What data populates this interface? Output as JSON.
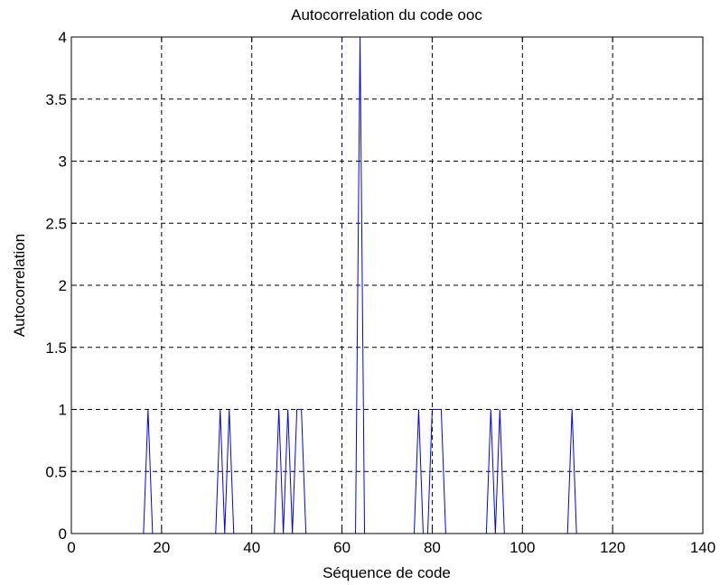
{
  "chart_data": {
    "type": "line",
    "title": "Autocorrelation du code ooc",
    "xlabel": "Séquence de code",
    "ylabel": "Autocorrelation",
    "xlim": [
      0,
      140
    ],
    "ylim": [
      0,
      4
    ],
    "x_ticks": [
      0,
      20,
      40,
      60,
      80,
      100,
      120,
      140
    ],
    "y_ticks": [
      0,
      0.5,
      1,
      1.5,
      2,
      2.5,
      3,
      3.5,
      4
    ],
    "x_tick_labels": [
      "0",
      "20",
      "40",
      "60",
      "80",
      "100",
      "120",
      "140"
    ],
    "y_tick_labels": [
      "0",
      "0.5",
      "1",
      "1.5",
      "2",
      "2.5",
      "3",
      "3.5",
      "4"
    ],
    "grid": true,
    "series": [
      {
        "color": "#0000ff",
        "x": [
          1,
          16,
          17,
          18,
          32,
          33,
          34,
          35,
          36,
          45,
          46,
          47,
          48,
          49,
          50,
          51,
          52,
          63,
          64,
          65,
          76,
          77,
          78,
          79,
          80,
          81,
          82,
          83,
          92,
          93,
          94,
          95,
          96,
          110,
          111,
          112,
          127
        ],
        "y": [
          0,
          0,
          1,
          0,
          0,
          1,
          0,
          1,
          0,
          0,
          1,
          0,
          1,
          0,
          1,
          1,
          0,
          0,
          4,
          0,
          0,
          1,
          0,
          0,
          1,
          1,
          1,
          0,
          0,
          1,
          0,
          1,
          0,
          0,
          1,
          0,
          0
        ]
      }
    ]
  }
}
